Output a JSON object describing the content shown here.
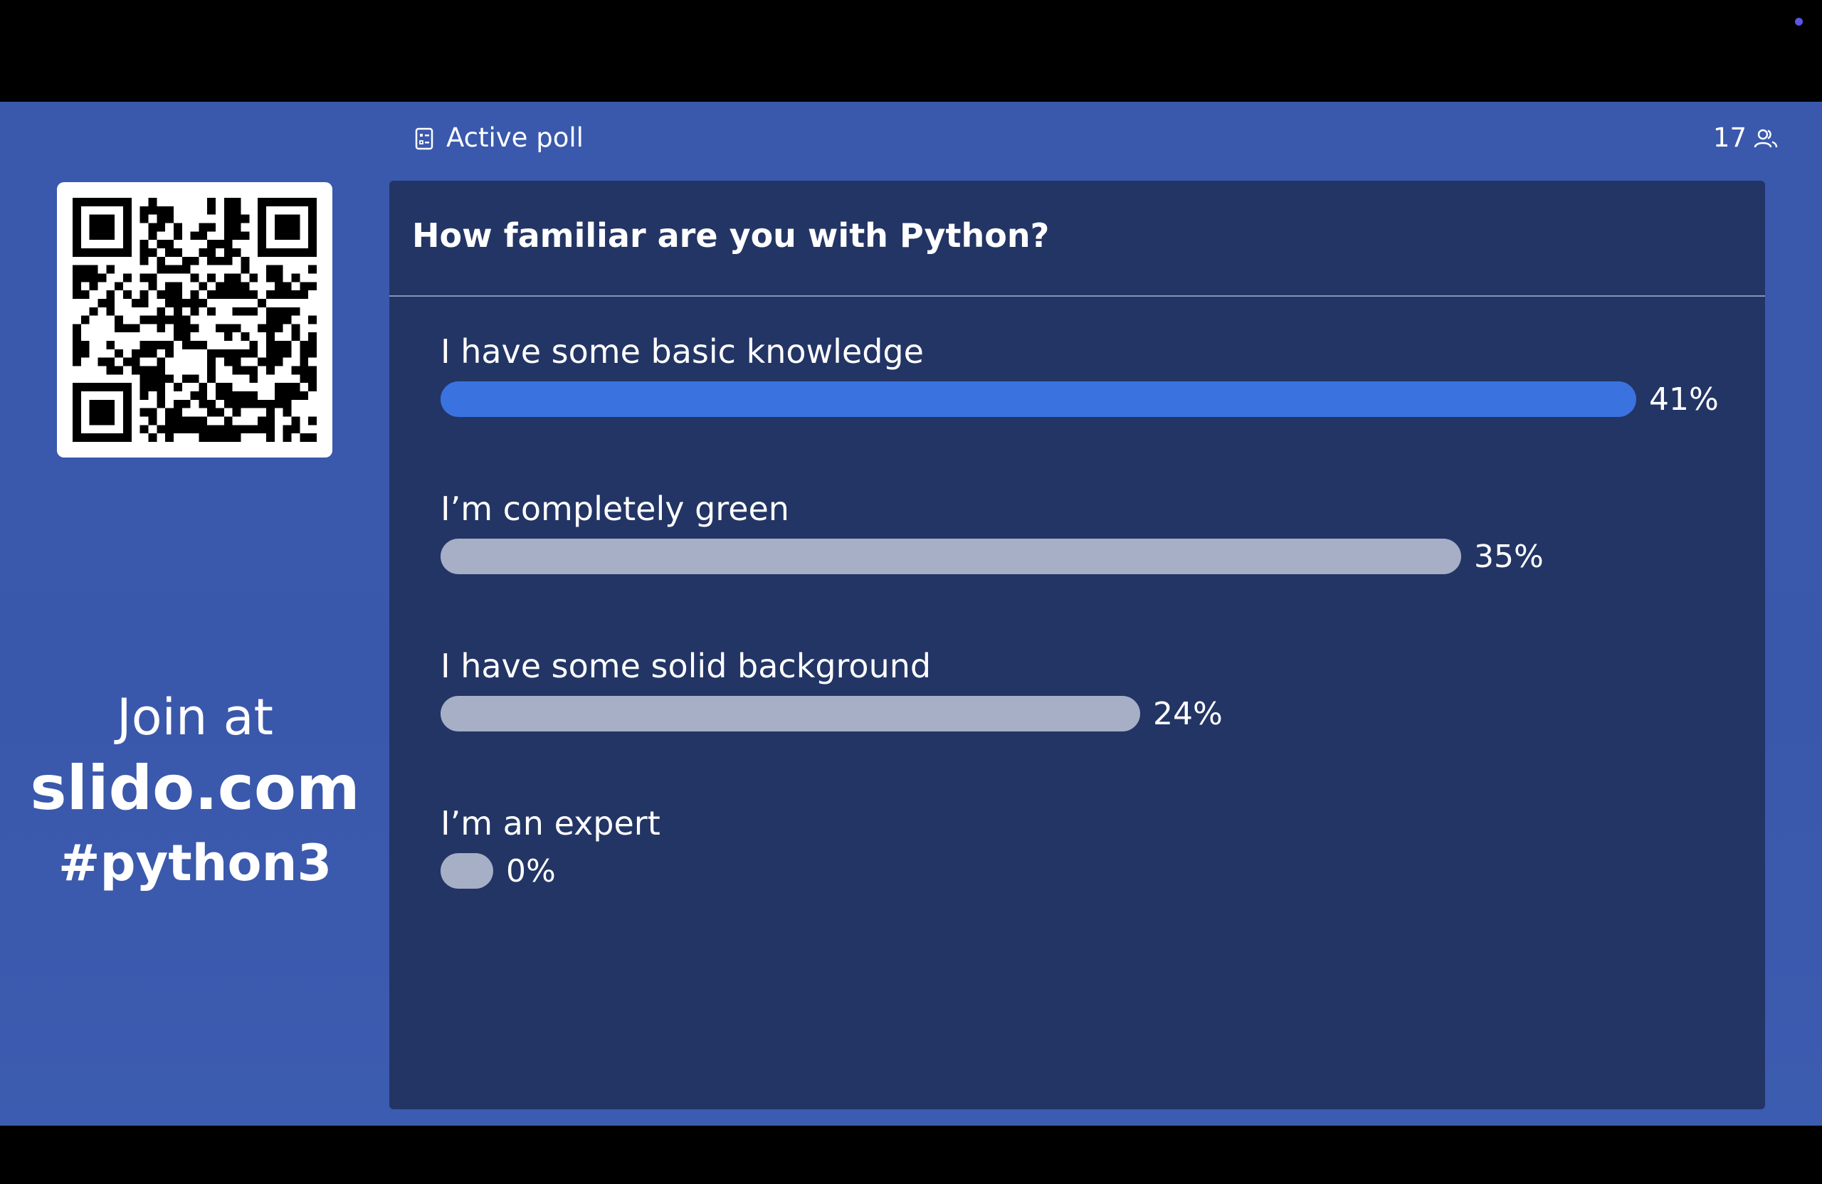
{
  "header": {
    "status_label": "Active poll",
    "participant_count": "17"
  },
  "join": {
    "line1": "Join at",
    "line2": "slido.com",
    "line3": "#python3"
  },
  "poll": {
    "question": "How familiar are you with Python?",
    "options": [
      {
        "label": "I have some basic knowledge",
        "percent_label": "41%",
        "value": 41,
        "leading": true
      },
      {
        "label": "I’m completely green",
        "percent_label": "35%",
        "value": 35,
        "leading": false
      },
      {
        "label": "I have some solid background",
        "percent_label": "24%",
        "value": 24,
        "leading": false
      },
      {
        "label": "I’m an expert",
        "percent_label": "0%",
        "value": 0,
        "leading": false
      }
    ]
  },
  "colors": {
    "leading_bar": "#3a73e0",
    "other_bar": "#a6afc6",
    "panel": "#233565",
    "background": "#3a59ad",
    "camera_dot": "#5b55e8"
  },
  "icons": {
    "poll": "poll-icon",
    "participants": "people-icon",
    "qr": "qr-code"
  }
}
